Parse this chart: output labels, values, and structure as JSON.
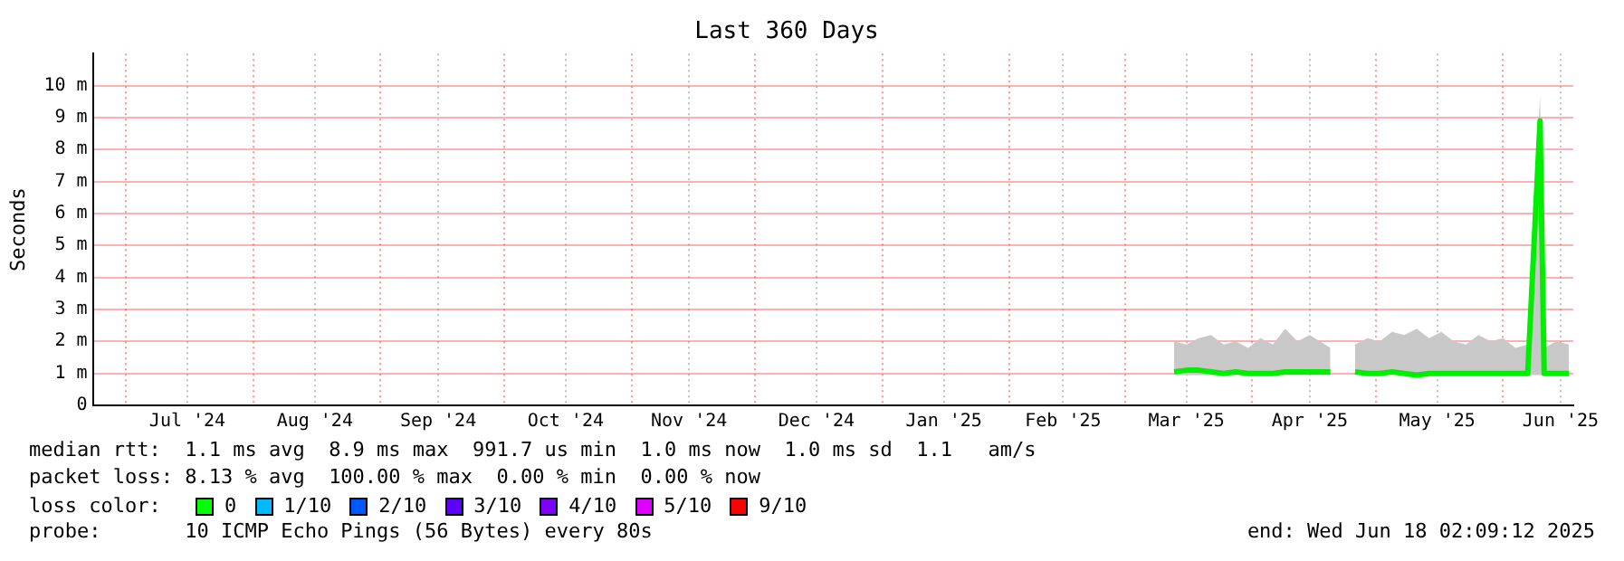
{
  "chart_data": {
    "type": "line",
    "title": "Last 360 Days",
    "ylabel": "Seconds",
    "x": [
      "2025-03-13",
      "2025-03-16",
      "2025-03-19",
      "2025-03-22",
      "2025-03-25",
      "2025-03-28",
      "2025-03-31",
      "2025-04-03",
      "2025-04-06",
      "2025-04-09",
      "2025-04-12",
      "2025-04-15",
      "2025-04-20",
      "2025-04-23",
      "2025-04-26",
      "2025-04-29",
      "2025-05-02",
      "2025-05-05",
      "2025-05-08",
      "2025-05-11",
      "2025-05-14",
      "2025-05-17",
      "2025-05-20",
      "2025-05-23",
      "2025-05-26",
      "2025-05-29",
      "2025-06-01",
      "2025-06-04",
      "2025-06-07",
      "2025-06-10",
      "2025-06-11",
      "2025-06-14",
      "2025-06-17"
    ],
    "series": [
      {
        "color": "#00ee00",
        "values": [
          1.05,
          1.1,
          1.1,
          1.05,
          1.0,
          1.05,
          1.0,
          1.0,
          1.0,
          1.05,
          1.05,
          1.05,
          1.05,
          null,
          1.05,
          1.0,
          1.0,
          1.05,
          1.0,
          0.95,
          1.0,
          1.0,
          1.0,
          1.0,
          1.0,
          1.0,
          1.0,
          1.0,
          1.0,
          8.9,
          1.0,
          1.0,
          1.0
        ],
        "lower": [
          0.95,
          0.95,
          0.95,
          0.95,
          0.95,
          0.95,
          0.95,
          0.95,
          0.95,
          0.95,
          0.95,
          0.95,
          0.95,
          null,
          0.95,
          0.95,
          0.95,
          0.95,
          0.95,
          0.9,
          0.95,
          0.95,
          0.95,
          0.95,
          0.95,
          0.95,
          0.95,
          0.95,
          0.95,
          0.95,
          0.95,
          0.95,
          0.95
        ],
        "upper": [
          2.0,
          1.9,
          2.1,
          2.2,
          1.9,
          2.0,
          1.8,
          2.1,
          1.9,
          2.4,
          2.0,
          2.2,
          1.8,
          null,
          1.9,
          2.1,
          2.0,
          2.3,
          2.2,
          2.4,
          2.1,
          2.3,
          2.0,
          1.9,
          2.2,
          2.0,
          2.1,
          1.8,
          1.9,
          9.7,
          1.8,
          2.0,
          1.9
        ]
      }
    ],
    "xlim": [
      "2024-06-23",
      "2025-06-18T02:09"
    ],
    "xticks": [
      {
        "value": "2024-07-01",
        "label": null
      },
      {
        "value": "2024-07-16",
        "label": "Jul '24"
      },
      {
        "value": "2024-08-01",
        "label": null
      },
      {
        "value": "2024-08-16",
        "label": "Aug '24"
      },
      {
        "value": "2024-09-01",
        "label": null
      },
      {
        "value": "2024-09-15",
        "label": "Sep '24"
      },
      {
        "value": "2024-10-01",
        "label": null
      },
      {
        "value": "2024-10-16",
        "label": "Oct '24"
      },
      {
        "value": "2024-11-01",
        "label": null
      },
      {
        "value": "2024-11-15",
        "label": "Nov '24"
      },
      {
        "value": "2024-12-01",
        "label": null
      },
      {
        "value": "2024-12-16",
        "label": "Dec '24"
      },
      {
        "value": "2025-01-01",
        "label": null
      },
      {
        "value": "2025-01-16",
        "label": "Jan '25"
      },
      {
        "value": "2025-02-01",
        "label": null
      },
      {
        "value": "2025-02-14",
        "label": "Feb '25"
      },
      {
        "value": "2025-03-01",
        "label": null
      },
      {
        "value": "2025-03-16",
        "label": "Mar '25"
      },
      {
        "value": "2025-04-01",
        "label": null
      },
      {
        "value": "2025-04-15",
        "label": "Apr '25"
      },
      {
        "value": "2025-05-01",
        "label": null
      },
      {
        "value": "2025-05-16",
        "label": "May '25"
      },
      {
        "value": "2025-06-01",
        "label": null
      },
      {
        "value": "2025-06-15",
        "label": "Jun '25"
      }
    ],
    "ylim": [
      0,
      11
    ],
    "yticks": [
      0,
      {
        "value": 1,
        "label": "1 m"
      },
      {
        "value": 2,
        "label": "2 m"
      },
      {
        "value": 3,
        "label": "3 m"
      },
      {
        "value": 4,
        "label": "4 m"
      },
      {
        "value": 5,
        "label": "5 m"
      },
      {
        "value": 6,
        "label": "6 m"
      },
      {
        "value": 7,
        "label": "7 m"
      },
      {
        "value": 8,
        "label": "8 m"
      },
      {
        "value": 9,
        "label": "9 m"
      },
      {
        "value": 10,
        "label": "10 m"
      }
    ],
    "grid": true,
    "legend": false,
    "marker": "none",
    "line_style": "solid",
    "annotations": [
      "median rtt:  1.1 ms avg  8.9 ms max  991.7 us min  1.0 ms now  1.0 ms sd  1.1   am/s",
      "packet loss: 8.13 % avg  100.00 % max  0.00 % min  0.00 % now",
      "loss color:",
      "0",
      "1/10",
      "2/10",
      "3/10",
      "4/10",
      "5/10",
      "9/10",
      "probe:       10 ICMP Echo Pings (56 Bytes) every 80s",
      "end: Wed Jun 18 02:09:12 2025"
    ]
  }
}
